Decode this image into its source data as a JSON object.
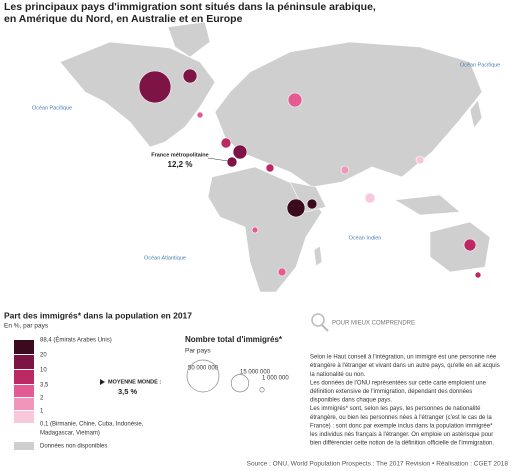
{
  "title": [
    "Les principaux pays d'immigration sont situés dans la péninsule arabique,",
    "en Amérique du Nord, en Australie et en Europe"
  ],
  "map": {
    "oceans": [
      "Océan Pacifique",
      "Océan Pacifique",
      "Océan Atlantique",
      "Océan Indien"
    ],
    "callout": {
      "label": "France métropolitaine",
      "value": "12,2 %"
    }
  },
  "share_legend": {
    "title": "Part des immigrés* dans la population en 2017",
    "subtitle": "En %, par pays",
    "classes": [
      "88,4 (Émirats Arabes Unis)",
      "20",
      "10",
      "3,5",
      "2",
      "1",
      "0,1 (Birmanie, Chine, Cuba, Indonésie,",
      "Madagascar, Vietnam)"
    ],
    "colors": [
      "#3b0a1f",
      "#7d1445",
      "#bd2a63",
      "#e45a93",
      "#f095bb",
      "#f8c7dc"
    ],
    "world_average": {
      "label": "MOYENNE MONDE :",
      "value": "3,5 %"
    },
    "no_data": "Données non disponibles"
  },
  "size_legend": {
    "title": "Nombre total d'immigrés*",
    "subtitle": "Par pays",
    "sizes": [
      {
        "value": 50000000,
        "label": "50 000 000"
      },
      {
        "value": 15000000,
        "label": "15 000 000"
      },
      {
        "value": 1000000,
        "label": "1 000 000"
      }
    ]
  },
  "explainer": {
    "heading": "POUR MIEUX COMPRENDRE",
    "lines": [
      "Selon le Haut conseil à l'intégration, un immigré est une personne née",
      "étrangère à l'étranger et vivant dans un autre pays, qu'elle en ait acquis",
      "la nationalité ou non.",
      "Les données de l'ONU représentées sur cette carte emploient une",
      "définition extensive de l'immigration, dépendant des données",
      "disponibles dans chaque pays.",
      "Les immigrés* sont, selon les pays, les personnes de nationalité",
      "étrangère, ou bien les personnes nées à l'étranger (c'est le cas de la",
      "France) : sont donc par exemple inclus dans la population immigrée*",
      "les individus nés français à l'étranger. On emploie un astérisque pour",
      "bien différencier cette notion de la définition officielle de l'immigration."
    ]
  },
  "source": "Source : ONU, World Population Prospects : The 2017 Revision • Réalisation : CGET 2018"
}
